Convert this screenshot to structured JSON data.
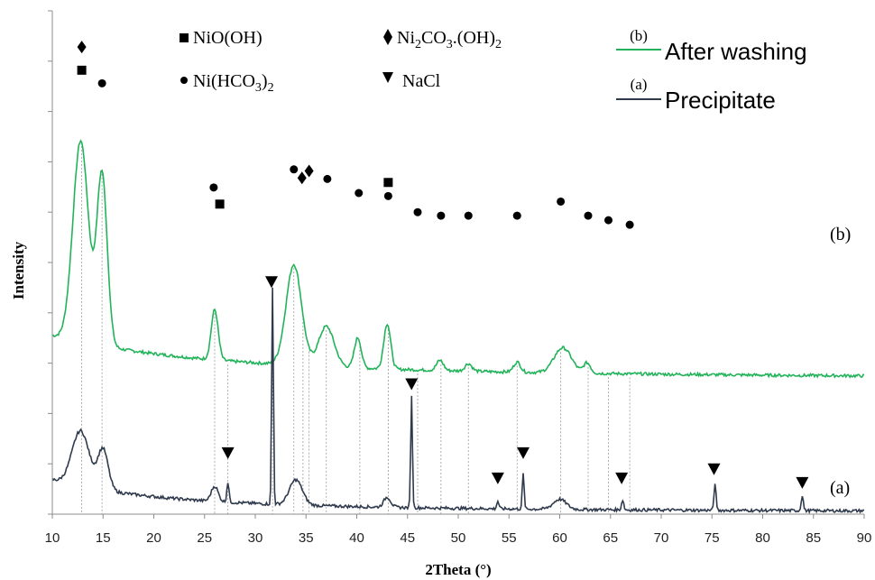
{
  "chart_data": {
    "type": "line",
    "xlabel": "2Theta (°)",
    "ylabel": "Intensity",
    "xlim": [
      10,
      90
    ],
    "xticks": [
      10,
      15,
      20,
      25,
      30,
      35,
      40,
      45,
      50,
      55,
      60,
      65,
      70,
      75,
      80,
      85,
      90
    ],
    "grid": false,
    "colors": {
      "b": "#22b35a",
      "a": "#2f3a4d",
      "dash": "#9a9a9a"
    },
    "legend": {
      "placement": "top-right",
      "entries": [
        {
          "key": "(b)",
          "label": "After washing",
          "series": "b"
        },
        {
          "key": "(a)",
          "label": "Precipitate",
          "series": "a"
        }
      ]
    },
    "symbol_legend": [
      {
        "symbol": "square",
        "label": "NiO(OH)"
      },
      {
        "symbol": "diamond",
        "label": "Ni2CO3.(OH)2"
      },
      {
        "symbol": "circle",
        "label": "Ni(HCO3)2"
      },
      {
        "symbol": "triangle-down",
        "label": "NaCl"
      }
    ],
    "series": [
      {
        "name": "(b)",
        "label": "(b)",
        "baseline": 0.27,
        "peaks": [
          {
            "x": 12.8,
            "h": 0.4,
            "w": 1.8
          },
          {
            "x": 14.9,
            "h": 0.34,
            "w": 1.2
          },
          {
            "x": 26.0,
            "h": 0.1,
            "w": 0.8
          },
          {
            "x": 33.8,
            "h": 0.2,
            "w": 1.8
          },
          {
            "x": 37.0,
            "h": 0.08,
            "w": 1.8
          },
          {
            "x": 40.1,
            "h": 0.06,
            "w": 0.8
          },
          {
            "x": 43.0,
            "h": 0.09,
            "w": 0.8
          },
          {
            "x": 48.2,
            "h": 0.02,
            "w": 0.8
          },
          {
            "x": 51.0,
            "h": 0.015,
            "w": 0.8
          },
          {
            "x": 55.8,
            "h": 0.02,
            "w": 0.8
          },
          {
            "x": 60.3,
            "h": 0.05,
            "w": 2.0
          },
          {
            "x": 62.7,
            "h": 0.02,
            "w": 0.8
          }
        ]
      },
      {
        "name": "(a)",
        "label": "(a)",
        "baseline": 0.005,
        "peaks": [
          {
            "x": 12.8,
            "h": 0.11,
            "w": 2.0
          },
          {
            "x": 15.0,
            "h": 0.08,
            "w": 1.2
          },
          {
            "x": 26.0,
            "h": 0.03,
            "w": 0.8
          },
          {
            "x": 27.3,
            "h": 0.04,
            "w": 0.25
          },
          {
            "x": 31.7,
            "h": 0.43,
            "w": 0.2
          },
          {
            "x": 34.0,
            "h": 0.05,
            "w": 1.5
          },
          {
            "x": 43.0,
            "h": 0.02,
            "w": 0.8
          },
          {
            "x": 45.4,
            "h": 0.22,
            "w": 0.2
          },
          {
            "x": 53.9,
            "h": 0.015,
            "w": 0.25
          },
          {
            "x": 56.4,
            "h": 0.07,
            "w": 0.22
          },
          {
            "x": 60.0,
            "h": 0.02,
            "w": 1.5
          },
          {
            "x": 66.2,
            "h": 0.02,
            "w": 0.25
          },
          {
            "x": 75.3,
            "h": 0.05,
            "w": 0.25
          },
          {
            "x": 83.9,
            "h": 0.03,
            "w": 0.25
          }
        ]
      }
    ],
    "reference_lines": [
      12.9,
      14.9,
      26.0,
      27.3,
      31.7,
      33.8,
      34.7,
      35.3,
      37.0,
      40.3,
      43.1,
      46.0,
      48.3,
      51.0,
      55.8,
      60.1,
      62.8,
      64.8,
      66.9
    ],
    "markers": [
      {
        "symbol": "diamond",
        "x": 12.9,
        "y": 0.928
      },
      {
        "symbol": "square",
        "x": 12.9,
        "y": 0.882
      },
      {
        "symbol": "circle",
        "x": 14.9,
        "y": 0.856
      },
      {
        "symbol": "circle",
        "x": 25.9,
        "y": 0.649
      },
      {
        "symbol": "square",
        "x": 26.5,
        "y": 0.616
      },
      {
        "symbol": "circle",
        "x": 33.8,
        "y": 0.685
      },
      {
        "symbol": "diamond",
        "x": 34.6,
        "y": 0.668
      },
      {
        "symbol": "diamond",
        "x": 35.3,
        "y": 0.682
      },
      {
        "symbol": "circle",
        "x": 37.1,
        "y": 0.666
      },
      {
        "symbol": "circle",
        "x": 40.2,
        "y": 0.638
      },
      {
        "symbol": "square",
        "x": 43.1,
        "y": 0.659
      },
      {
        "symbol": "circle",
        "x": 43.1,
        "y": 0.632
      },
      {
        "symbol": "circle",
        "x": 46.0,
        "y": 0.6
      },
      {
        "symbol": "circle",
        "x": 48.3,
        "y": 0.593
      },
      {
        "symbol": "circle",
        "x": 51.0,
        "y": 0.593
      },
      {
        "symbol": "circle",
        "x": 55.8,
        "y": 0.593
      },
      {
        "symbol": "circle",
        "x": 60.1,
        "y": 0.621
      },
      {
        "symbol": "circle",
        "x": 62.8,
        "y": 0.593
      },
      {
        "symbol": "circle",
        "x": 64.8,
        "y": 0.584
      },
      {
        "symbol": "circle",
        "x": 66.9,
        "y": 0.575
      },
      {
        "symbol": "triangle",
        "x": 31.6,
        "y": 0.462
      },
      {
        "symbol": "triangle",
        "x": 45.4,
        "y": 0.259
      },
      {
        "symbol": "triangle",
        "x": 27.3,
        "y": 0.122
      },
      {
        "symbol": "triangle",
        "x": 56.4,
        "y": 0.122
      },
      {
        "symbol": "triangle",
        "x": 53.9,
        "y": 0.072
      },
      {
        "symbol": "triangle",
        "x": 66.1,
        "y": 0.072
      },
      {
        "symbol": "triangle",
        "x": 75.2,
        "y": 0.09
      },
      {
        "symbol": "triangle",
        "x": 83.9,
        "y": 0.063
      }
    ]
  }
}
